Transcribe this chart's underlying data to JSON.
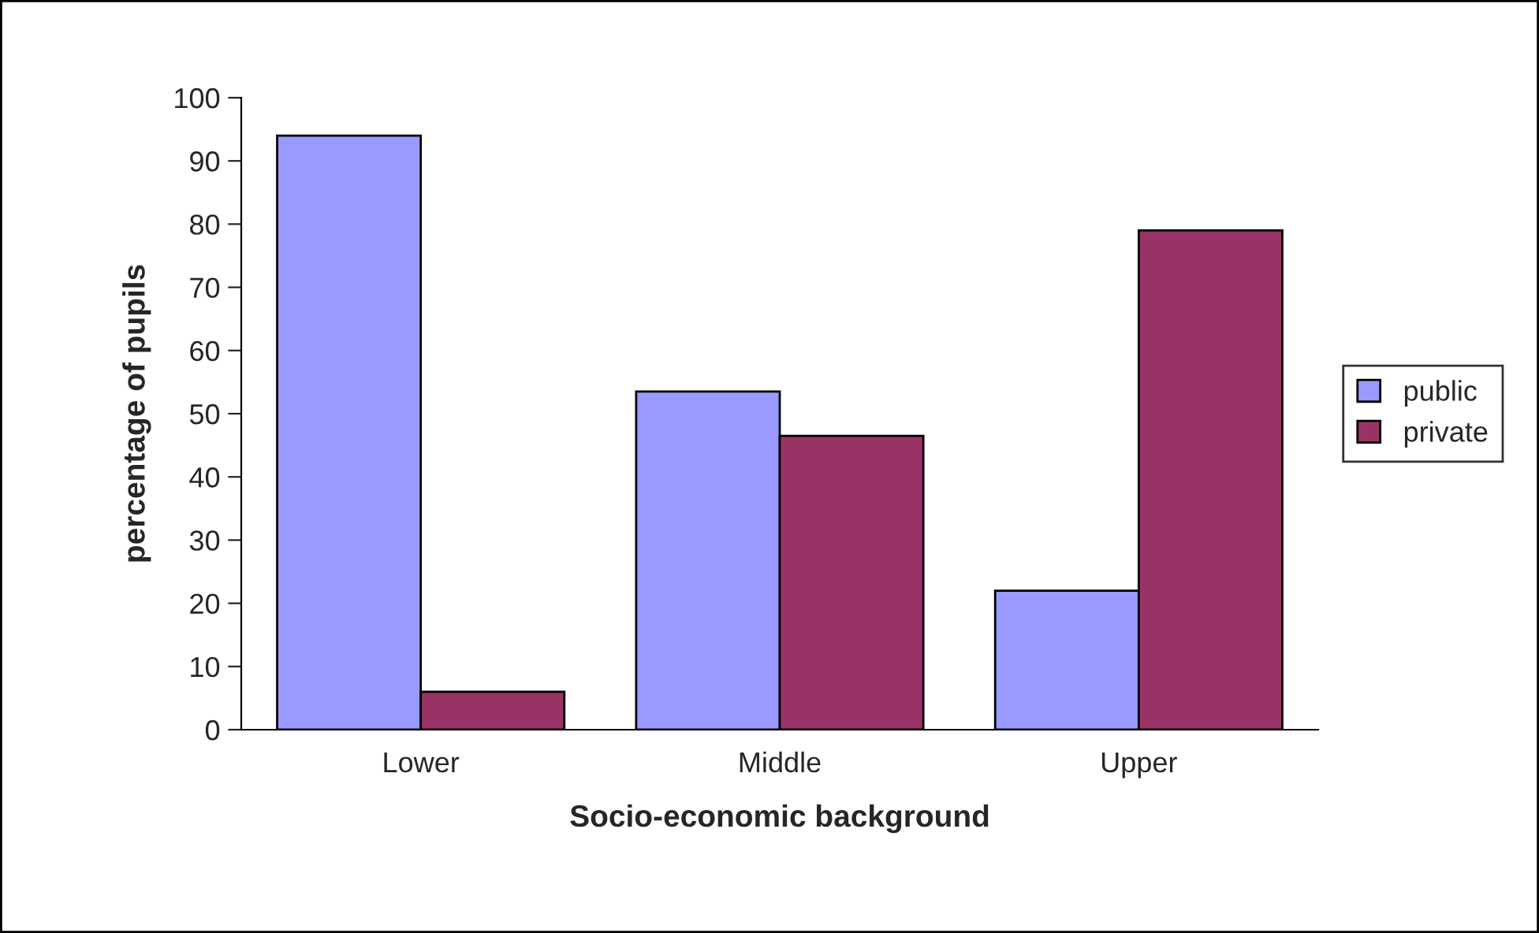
{
  "chart_data": {
    "type": "bar",
    "xlabel": "Socio-economic background",
    "ylabel": "percentage of pupils",
    "categories": [
      "Lower",
      "Middle",
      "Upper"
    ],
    "series": [
      {
        "name": "public",
        "color": "#9999ff",
        "values": [
          94,
          53.5,
          22
        ]
      },
      {
        "name": "private",
        "color": "#993366",
        "values": [
          6,
          46.5,
          79
        ]
      }
    ],
    "ylim": [
      0,
      100
    ],
    "yticks": [
      0,
      10,
      20,
      30,
      40,
      50,
      60,
      70,
      80,
      90,
      100
    ],
    "grid": false,
    "legend": "right"
  }
}
